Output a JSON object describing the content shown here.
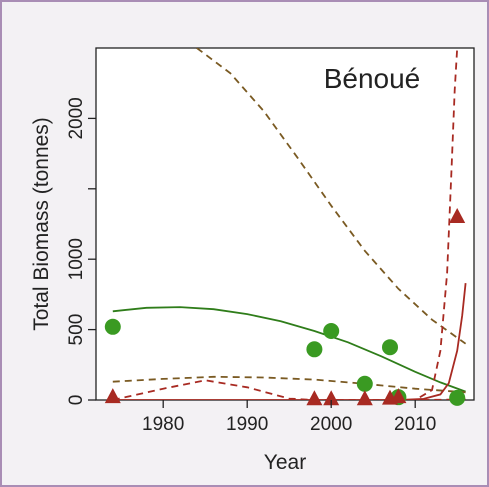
{
  "chart_data": {
    "type": "scatter",
    "title": "Bénoué",
    "xlabel": "Year",
    "ylabel": "Total Biomass (tonnes)",
    "xlim": [
      1972,
      2017
    ],
    "ylim": [
      0,
      2500
    ],
    "xticks": [
      1980,
      1990,
      2000,
      2010
    ],
    "yticks": [
      0,
      500,
      1000,
      1500,
      2000
    ],
    "ytick_labels": [
      "0",
      "500",
      "1000",
      "",
      "2000"
    ],
    "grid": false,
    "series": [
      {
        "marker": "circle",
        "color": "#3a9a22",
        "points": [
          {
            "x": 1974,
            "y": 520
          },
          {
            "x": 1998,
            "y": 360
          },
          {
            "x": 2000,
            "y": 490
          },
          {
            "x": 2004,
            "y": 115
          },
          {
            "x": 2007,
            "y": 375
          },
          {
            "x": 2008,
            "y": 20
          },
          {
            "x": 2015,
            "y": 15
          }
        ]
      },
      {
        "marker": "triangle",
        "color": "#a82a22",
        "points": [
          {
            "x": 1974,
            "y": 20
          },
          {
            "x": 1998,
            "y": 5
          },
          {
            "x": 2000,
            "y": 5
          },
          {
            "x": 2004,
            "y": 5
          },
          {
            "x": 2007,
            "y": 10
          },
          {
            "x": 2008,
            "y": 20
          },
          {
            "x": 2015,
            "y": 1300
          }
        ]
      }
    ],
    "fit_lines": [
      {
        "color": "#2f7d1a",
        "style": "solid",
        "points": [
          [
            1974,
            630
          ],
          [
            1978,
            655
          ],
          [
            1982,
            660
          ],
          [
            1986,
            645
          ],
          [
            1990,
            610
          ],
          [
            1994,
            560
          ],
          [
            1998,
            490
          ],
          [
            2002,
            410
          ],
          [
            2006,
            310
          ],
          [
            2010,
            200
          ],
          [
            2013,
            125
          ],
          [
            2016,
            60
          ]
        ]
      },
      {
        "color": "#7a5a22",
        "style": "dashed",
        "points": [
          [
            1984,
            2500
          ],
          [
            1988,
            2320
          ],
          [
            1992,
            2050
          ],
          [
            1996,
            1720
          ],
          [
            2000,
            1380
          ],
          [
            2004,
            1060
          ],
          [
            2008,
            790
          ],
          [
            2012,
            570
          ],
          [
            2016,
            400
          ]
        ]
      },
      {
        "color": "#7a5a22",
        "style": "dashed",
        "points": [
          [
            1974,
            130
          ],
          [
            1980,
            150
          ],
          [
            1986,
            165
          ],
          [
            1992,
            160
          ],
          [
            1998,
            145
          ],
          [
            2004,
            115
          ],
          [
            2010,
            80
          ],
          [
            2016,
            55
          ]
        ]
      },
      {
        "color": "#a82a22",
        "style": "solid",
        "points": [
          [
            1974,
            0
          ],
          [
            2008,
            0
          ],
          [
            2011,
            8
          ],
          [
            2013,
            40
          ],
          [
            2014,
            120
          ],
          [
            2015,
            350
          ],
          [
            2015.6,
            600
          ],
          [
            2016,
            830
          ]
        ]
      },
      {
        "color": "#a82a22",
        "style": "dashed",
        "points": [
          [
            1974,
            0
          ],
          [
            1980,
            80
          ],
          [
            1985,
            140
          ],
          [
            1990,
            90
          ],
          [
            1995,
            10
          ],
          [
            1998,
            0
          ],
          [
            2010,
            0
          ],
          [
            2012,
            70
          ],
          [
            2013,
            350
          ],
          [
            2013.8,
            900
          ],
          [
            2014.3,
            1600
          ],
          [
            2014.7,
            2200
          ],
          [
            2015,
            2500
          ]
        ]
      },
      {
        "color": "#a82a22",
        "style": "dashed",
        "points": [
          [
            2008,
            0
          ],
          [
            2011,
            0
          ],
          [
            2014,
            3
          ],
          [
            2016,
            10
          ]
        ]
      }
    ]
  }
}
